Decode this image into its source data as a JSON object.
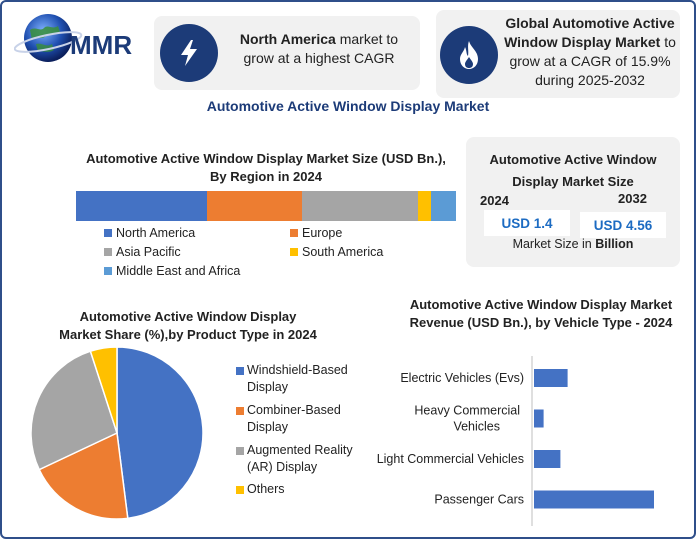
{
  "logo": {
    "text": "MMR"
  },
  "header": {
    "card1": {
      "bold": "North America",
      "rest": " market to grow at a highest CAGR"
    },
    "card2": {
      "bold": "Global Automotive Active Window Display Market",
      "rest": " to grow at a CAGR of 15.9% during 2025-2032"
    },
    "main_title": "Automotive Active Window Display Market"
  },
  "market_size": {
    "title": "Automotive Active Window Display Market Size",
    "year1": "2024",
    "year2": "2032",
    "value1": "USD 1.4",
    "value2": "USD 4.56",
    "unit_prefix": "Market Size in ",
    "unit_bold": "Billion"
  },
  "colors": {
    "accent": "#1c3b78",
    "blue": "#4472c4",
    "orange": "#ed7d31",
    "gray": "#a5a5a5",
    "yellow": "#ffc000",
    "lightblue": "#5b9bd5"
  },
  "chart_data": [
    {
      "type": "bar",
      "orientation": "stacked-horizontal",
      "title": "Automotive Active Window Display Market Size (USD Bn.), By Region in 2024",
      "categories": [
        "North America",
        "Europe",
        "Asia Pacific",
        "South America",
        "Middle East and Africa"
      ],
      "values": [
        34,
        25,
        30,
        3.5,
        6.5
      ],
      "colors": [
        "#4472c4",
        "#ed7d31",
        "#a5a5a5",
        "#ffc000",
        "#5b9bd5"
      ],
      "legend": "bottom"
    },
    {
      "type": "pie",
      "title": "Automotive Active Window Display Market Share (%),by Product Type in 2024",
      "categories": [
        "Windshield-Based Display",
        "Combiner-Based Display",
        "Augmented Reality (AR) Display",
        "Others"
      ],
      "values": [
        48,
        20,
        27,
        5
      ],
      "colors": [
        "#4472c4",
        "#ed7d31",
        "#a5a5a5",
        "#ffc000"
      ],
      "legend": "right"
    },
    {
      "type": "bar",
      "orientation": "horizontal",
      "title": "Automotive Active Window Display Market Revenue (USD Bn.), by Vehicle Type - 2024",
      "categories": [
        "Electric Vehicles (Evs)",
        "Heavy Commercial Vehicles",
        "Light Commercial Vehicles",
        "Passenger Cars"
      ],
      "values": [
        0.14,
        0.04,
        0.11,
        0.5
      ],
      "color": "#4472c4"
    }
  ]
}
